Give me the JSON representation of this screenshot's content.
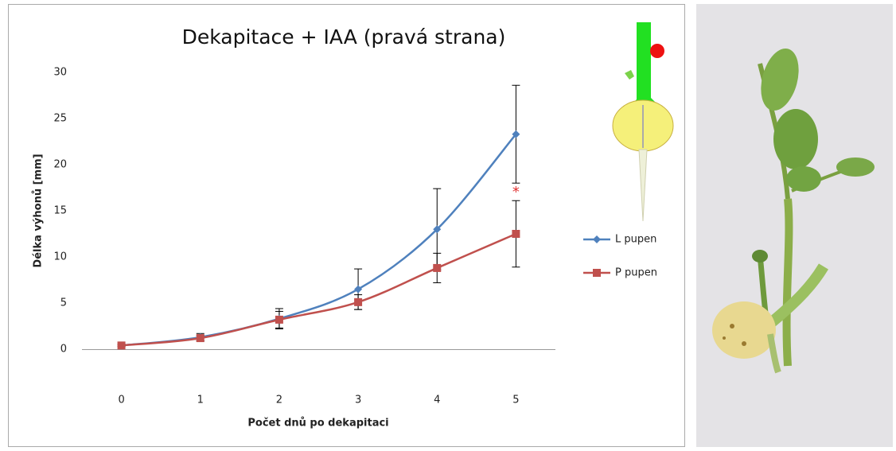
{
  "chart_data": {
    "type": "line",
    "title": "Dekapitace + IAA (pravá strana)",
    "x_label": "Počet dnů po dekapitaci",
    "y_label": "Délka výhonů [mm]",
    "x": [
      0,
      1,
      2,
      3,
      4,
      5
    ],
    "xlim": [
      -0.5,
      5.5
    ],
    "xticks": [
      0,
      1,
      2,
      3,
      4,
      5
    ],
    "ylim": [
      0,
      30
    ],
    "yticks": [
      0,
      5,
      10,
      15,
      20,
      25,
      30
    ],
    "grid": false,
    "legend": "right",
    "series": [
      {
        "name": "L pupen",
        "color": "#4f81bd",
        "marker": "diamond",
        "values": [
          0.4,
          1.3,
          3.3,
          6.5,
          13,
          23.3
        ],
        "errors": [
          0.1,
          0.4,
          1.1,
          2.2,
          4.4,
          5.3
        ]
      },
      {
        "name": "P pupen",
        "color": "#c0504d",
        "marker": "square",
        "values": [
          0.4,
          1.2,
          3.2,
          5.1,
          8.8,
          12.5
        ],
        "errors": [
          0.1,
          0.3,
          0.9,
          0.8,
          1.6,
          3.6
        ]
      }
    ],
    "annotations": [
      {
        "text": "*",
        "x": 5,
        "y": 17,
        "color": "#e03030"
      }
    ]
  }
}
